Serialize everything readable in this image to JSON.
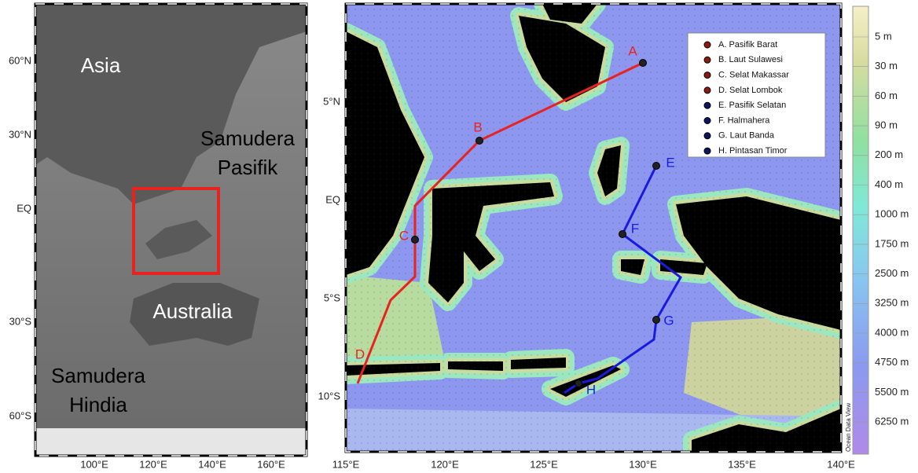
{
  "left_map": {
    "place_labels": [
      {
        "lines": [
          "Asia"
        ]
      },
      {
        "lines": [
          "Samudera",
          "Pasifik"
        ]
      },
      {
        "lines": [
          "Australia"
        ]
      },
      {
        "lines": [
          "Samudera",
          "Hindia"
        ]
      }
    ],
    "lat_ticks": [
      "60°N",
      "30°N",
      "EQ",
      "30°S",
      "60°S"
    ],
    "lon_ticks": [
      "100°E",
      "120°E",
      "140°E",
      "160°E"
    ]
  },
  "right_map": {
    "lat_ticks": [
      "5°N",
      "EQ",
      "5°S",
      "10°S"
    ],
    "lon_ticks": [
      "115°E",
      "120°E",
      "125°E",
      "130°E",
      "135°E",
      "140°E"
    ],
    "stations": [
      {
        "letter": "A",
        "legend": "A. Pasifik Barat"
      },
      {
        "letter": "B",
        "legend": "B. Laut Sulawesi"
      },
      {
        "letter": "C",
        "legend": "C. Selat Makassar"
      },
      {
        "letter": "D",
        "legend": "D. Selat Lombok"
      },
      {
        "letter": "E",
        "legend": "E. Pasifik Selatan"
      },
      {
        "letter": "F",
        "legend": "F. Halmahera"
      },
      {
        "letter": "G",
        "legend": "G. Laut Banda"
      },
      {
        "letter": "H",
        "legend": "H. Pintasan Timor"
      }
    ],
    "colorbar_labels": [
      "5 m",
      "30 m",
      "60 m",
      "90 m",
      "200 m",
      "400 m",
      "1000 m",
      "1750 m",
      "2500 m",
      "3250 m",
      "4000 m",
      "4750 m",
      "5500 m",
      "6250 m"
    ],
    "watermark": "Ocean Data View"
  }
}
